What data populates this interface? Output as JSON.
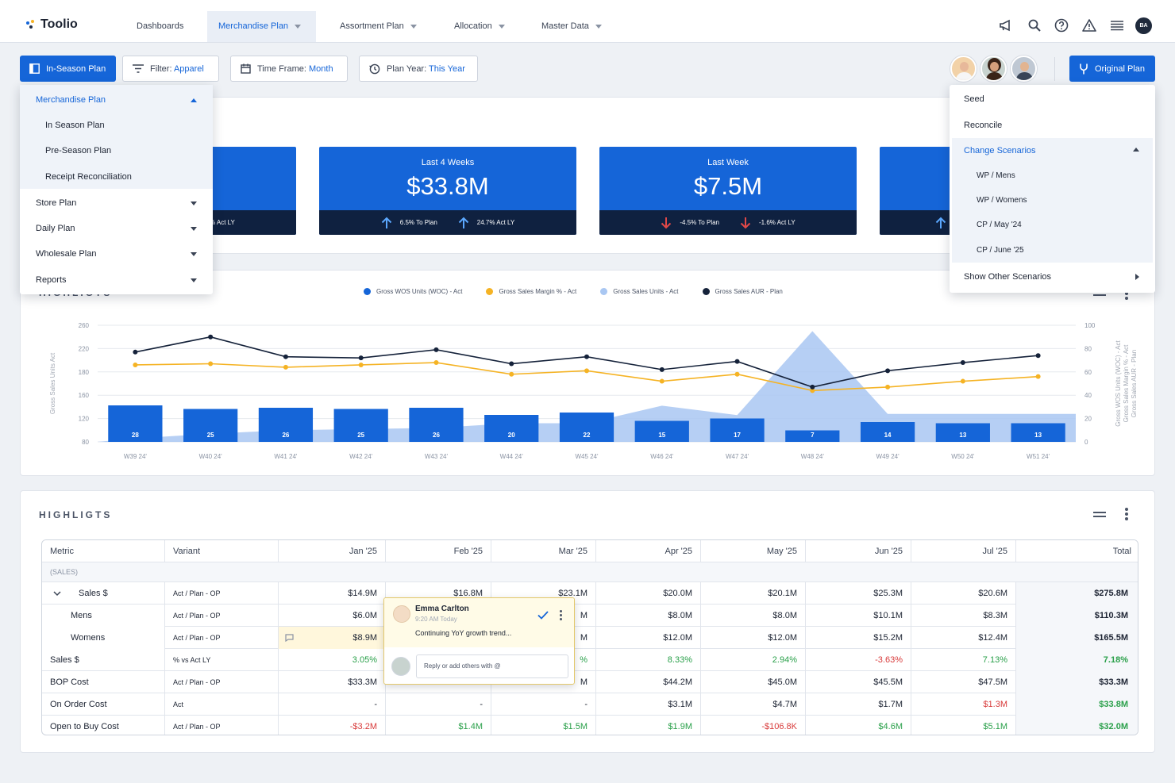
{
  "app": {
    "name": "Toolio"
  },
  "nav": {
    "dashboards": "Dashboards",
    "merchandise_plan": "Merchandise Plan",
    "assortment_plan": "Assortment Plan",
    "allocation": "Allocation",
    "master_data": "Master Data",
    "user_initials": "BA"
  },
  "toolbar": {
    "plan_button": "In-Season Plan",
    "filter_label": "Filter:",
    "filter_value": "Apparel",
    "timeframe_label": "Time Frame:",
    "timeframe_value": "Month",
    "planyear_label": "Plan Year:",
    "planyear_value": "This Year",
    "original_plan": "Original Plan"
  },
  "plan_menu": {
    "merchandise_plan": "Merchandise Plan",
    "in_season_plan": "In Season Plan",
    "pre_season_plan": "Pre-Season Plan",
    "receipt_reconciliation": "Receipt Reconciliation",
    "store_plan": "Store Plan",
    "daily_plan": "Daily Plan",
    "wholesale_plan": "Wholesale Plan",
    "reports": "Reports"
  },
  "scenario_menu": {
    "seed": "Seed",
    "reconcile": "Reconcile",
    "change_scenarios": "Change Scenarios",
    "wp_mens": "WP / Mens",
    "wp_womens": "WP / Womens",
    "cp_may": "CP / May '24",
    "cp_june": "CP / June '25",
    "show_other": "Show Other Scenarios"
  },
  "kpis": [
    {
      "foot2": "% Act LY"
    },
    {
      "label": "Last 4 Weeks",
      "value": "$33.8M",
      "foot1": "6.5% To Plan",
      "foot2": "24.7% Act LY",
      "dir": "up"
    },
    {
      "label": "Last Week",
      "value": "$7.5M",
      "foot1": "-4.5% To Plan",
      "foot2": "-1.6% Act LY",
      "dir": "down"
    }
  ],
  "chart": {
    "title": "HIGHLIGTS",
    "legend": [
      "Gross WOS Units (WOC) - Act",
      "Gross Sales Margin % - Act",
      "Gross Sales Units - Act",
      "Gross Sales AUR - Plan"
    ],
    "ylabel_left": "Gross Sales Units Act",
    "ylabel_right1": "Gross WOS Units (WOC) - Act",
    "ylabel_right2": "Gross Sales Margin % - Act",
    "ylabel_right3": "Gross Sales AUR - Plan",
    "colors": {
      "bar": "#1565d8",
      "margin": "#f5b324",
      "units": "#a9c7f2",
      "aur": "#15223a"
    }
  },
  "chart_data": {
    "type": "bar",
    "categories": [
      "W39 24'",
      "W40 24'",
      "W41 24'",
      "W42 24'",
      "W43 24'",
      "W44 24'",
      "W45 24'",
      "W46 24'",
      "W47 24'",
      "W48 24'",
      "W49 24'",
      "W50 24'",
      "W51 24'"
    ],
    "left_ticks": [
      260,
      220,
      180,
      160,
      120,
      80
    ],
    "right_ticks": [
      100,
      80,
      60,
      40,
      20,
      0
    ],
    "series": [
      {
        "name": "Gross WOS Units (WOC) - Act",
        "type": "bar",
        "values": [
          28,
          25,
          26,
          25,
          26,
          20,
          22,
          15,
          17,
          7,
          14,
          13,
          13
        ]
      },
      {
        "name": "Gross Sales Margin % - Act",
        "type": "line",
        "axis": "right",
        "values": [
          66,
          67,
          64,
          66,
          68,
          58,
          61,
          52,
          58,
          44,
          47,
          52,
          56
        ]
      },
      {
        "name": "Gross Sales Units - Act",
        "type": "area",
        "axis": "right",
        "values": [
          3,
          7,
          10,
          11,
          12,
          16,
          16,
          31,
          23,
          95,
          24,
          24,
          24
        ]
      },
      {
        "name": "Gross Sales AUR - Plan",
        "type": "line",
        "axis": "right",
        "values": [
          77,
          90,
          73,
          72,
          79,
          67,
          73,
          62,
          69,
          47,
          61,
          68,
          74
        ]
      }
    ]
  },
  "table": {
    "title": "HIGHLIGTS",
    "headers": [
      "Metric",
      "Variant",
      "Jan '25",
      "Feb '25",
      "Mar '25",
      "Apr '25",
      "May '25",
      "Jun '25",
      "Jul '25",
      "Total"
    ],
    "group_label": "(SALES)",
    "rows": [
      {
        "metric": "Sales $",
        "variant": "Act / Plan - OP",
        "cells": [
          "$14.9M",
          "$16.8M",
          "$23.1M",
          "$20.0M",
          "$20.1M",
          "$25.3M",
          "$20.6M",
          "$275.8M"
        ]
      },
      {
        "metric": "Mens",
        "variant": "Act / Plan - OP",
        "cells": [
          "$6.0M",
          "",
          "M",
          "$8.0M",
          "$8.0M",
          "$10.1M",
          "$8.3M",
          "$110.3M"
        ]
      },
      {
        "metric": "Womens",
        "variant": "Act / Plan - OP",
        "cells": [
          "$8.9M",
          "",
          "M",
          "$12.0M",
          "$12.0M",
          "$15.2M",
          "$12.4M",
          "$165.5M"
        ]
      },
      {
        "metric": "Sales $",
        "variant": "% vs Act LY",
        "cells": [
          "3.05%",
          "",
          "%",
          "8.33%",
          "2.94%",
          "-3.63%",
          "7.13%",
          "7.18%"
        ]
      },
      {
        "metric": "BOP Cost",
        "variant": "Act / Plan - OP",
        "cells": [
          "$33.3M",
          "",
          "M",
          "$44.2M",
          "$45.0M",
          "$45.5M",
          "$47.5M",
          "$33.3M"
        ]
      },
      {
        "metric": "On Order Cost",
        "variant": "Act",
        "cells": [
          "-",
          "-",
          "-",
          "$3.1M",
          "$4.7M",
          "$1.7M",
          "$1.3M",
          "$33.8M"
        ]
      },
      {
        "metric": "Open to Buy Cost",
        "variant": "Act / Plan - OP",
        "cells": [
          "-$3.2M",
          "$1.4M",
          "$1.5M",
          "$1.9M",
          "-$106.8K",
          "$4.6M",
          "$5.1M",
          "$32.0M"
        ]
      }
    ]
  },
  "comment": {
    "author": "Emma Carlton",
    "time": "9:20 AM Today",
    "text": "Continuing YoY growth trend...",
    "reply_placeholder": "Reply or add others with @"
  }
}
